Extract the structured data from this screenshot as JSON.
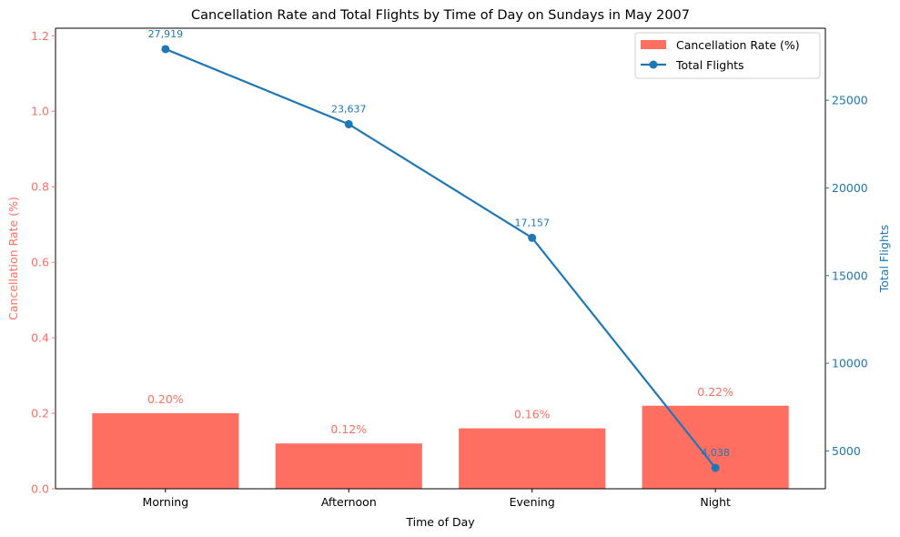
{
  "chart_data": {
    "type": "bar",
    "title": "Cancellation Rate and Total Flights by Time of Day on Sundays in May 2007",
    "xlabel": "Time of Day",
    "categories": [
      "Morning",
      "Afternoon",
      "Evening",
      "Night"
    ],
    "series": [
      {
        "name": "Cancellation Rate (%)",
        "type": "bar",
        "axis": "left",
        "values": [
          0.2,
          0.12,
          0.16,
          0.22
        ],
        "labels": [
          "0.20%",
          "0.12%",
          "0.16%",
          "0.22%"
        ]
      },
      {
        "name": "Total Flights",
        "type": "line",
        "axis": "right",
        "values": [
          27919,
          23637,
          17157,
          4038
        ],
        "labels": [
          "27,919",
          "23,637",
          "17,157",
          "4,038"
        ]
      }
    ],
    "y_left": {
      "label": "Cancellation Rate (%)",
      "ylim": [
        0,
        1.22
      ],
      "ticks": [
        0.0,
        0.2,
        0.4,
        0.6,
        0.8,
        1.0,
        1.2
      ],
      "tick_labels": [
        "0.0",
        "0.2",
        "0.4",
        "0.6",
        "0.8",
        "1.0",
        "1.2"
      ]
    },
    "y_right": {
      "label": "Total Flights",
      "ylim": [
        2845,
        29110
      ],
      "ticks": [
        5000,
        10000,
        15000,
        20000,
        25000
      ],
      "tick_labels": [
        "5000",
        "10000",
        "15000",
        "20000",
        "25000"
      ]
    },
    "legend": {
      "position": "top-right",
      "entries": [
        "Cancellation Rate (%)",
        "Total Flights"
      ]
    },
    "grid": false,
    "colors": {
      "bar": "#ff6f61",
      "line": "#1f77b4",
      "axis": "#000000"
    }
  }
}
